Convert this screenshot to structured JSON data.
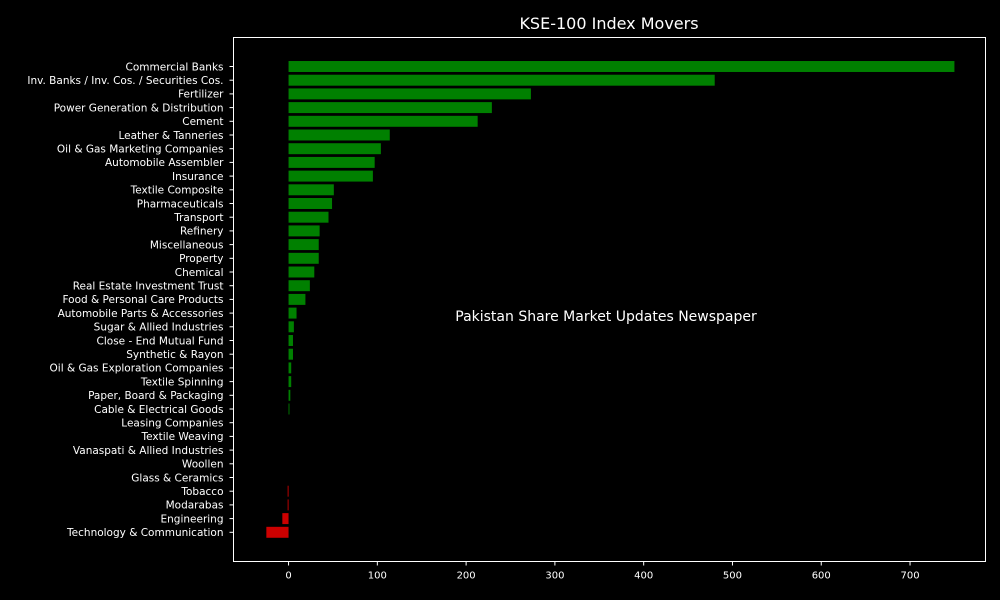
{
  "chart_data": {
    "type": "bar",
    "orientation": "horizontal",
    "title": "KSE-100 Index Movers",
    "annotation": "Pakistan Share Market Updates Newspaper",
    "xlabel": "",
    "ylabel": "",
    "xlim": [
      -62,
      785
    ],
    "xticks": [
      0,
      100,
      200,
      300,
      400,
      500,
      600,
      700
    ],
    "grid": false,
    "positive_color": "#008000",
    "negative_color": "#cc0000",
    "background": "#000000",
    "categories": [
      "Commercial Banks",
      "Inv. Banks / Inv. Cos. / Securities Cos.",
      "Fertilizer",
      "Power Generation & Distribution",
      "Cement",
      "Leather & Tanneries",
      "Oil & Gas Marketing Companies",
      "Automobile Assembler",
      "Insurance",
      "Textile Composite",
      "Pharmaceuticals",
      "Transport",
      "Refinery",
      "Miscellaneous",
      "Property",
      "Chemical",
      "Real Estate Investment Trust",
      "Food & Personal Care Products",
      "Automobile Parts & Accessories",
      "Sugar & Allied Industries",
      "Close - End Mutual Fund",
      "Synthetic & Rayon",
      "Oil & Gas Exploration Companies",
      "Textile Spinning",
      "Paper, Board & Packaging",
      "Cable & Electrical Goods",
      "Leasing Companies",
      "Textile Weaving",
      "Vanaspati & Allied Industries",
      "Woollen",
      "Glass & Ceramics",
      "Tobacco",
      "Modarabas",
      "Engineering",
      "Technology & Communication"
    ],
    "values": [
      750,
      480,
      273,
      229,
      213,
      114,
      104,
      97,
      95,
      51,
      49,
      45,
      35,
      34,
      34,
      29,
      24,
      19,
      9,
      6,
      5,
      5,
      3,
      3,
      2,
      1,
      0,
      0,
      0,
      0,
      0,
      -1,
      -1,
      -7,
      -25
    ]
  }
}
